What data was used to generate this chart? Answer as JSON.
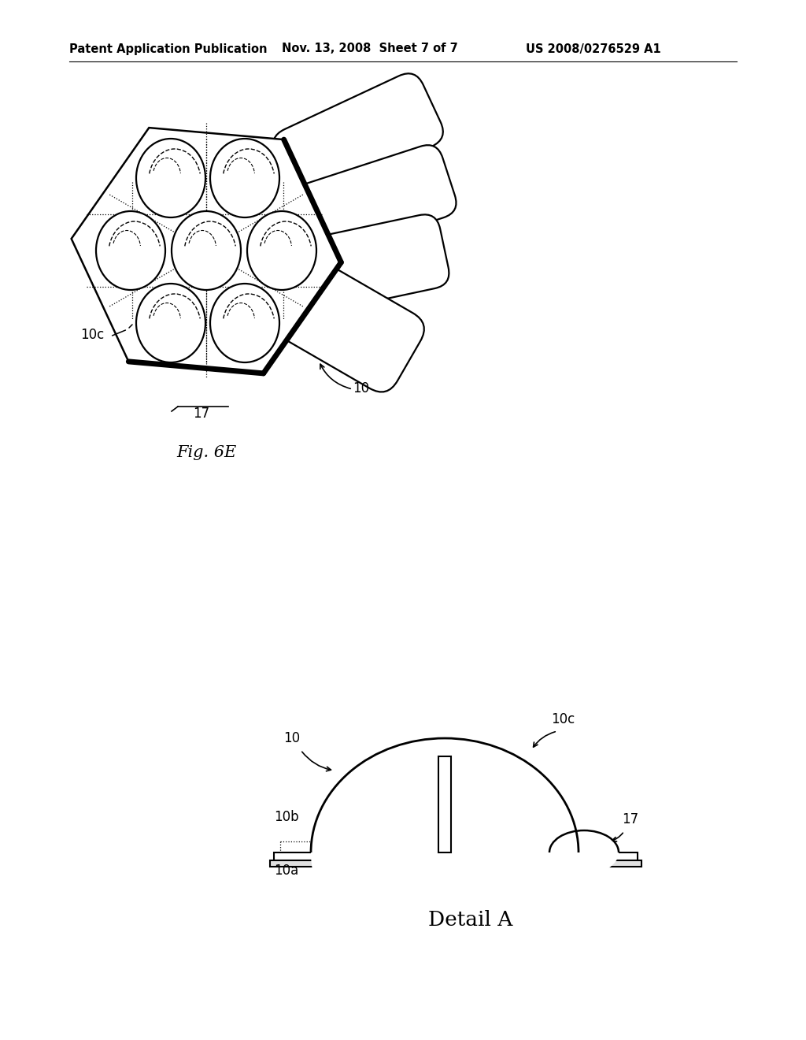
{
  "bg_color": "#ffffff",
  "line_color": "#000000",
  "header_text": "Patent Application Publication",
  "header_date": "Nov. 13, 2008  Sheet 7 of 7",
  "header_patent": "US 2008/0276529 A1",
  "fig_label": "Fig. 6E",
  "detail_label": "Detail A"
}
